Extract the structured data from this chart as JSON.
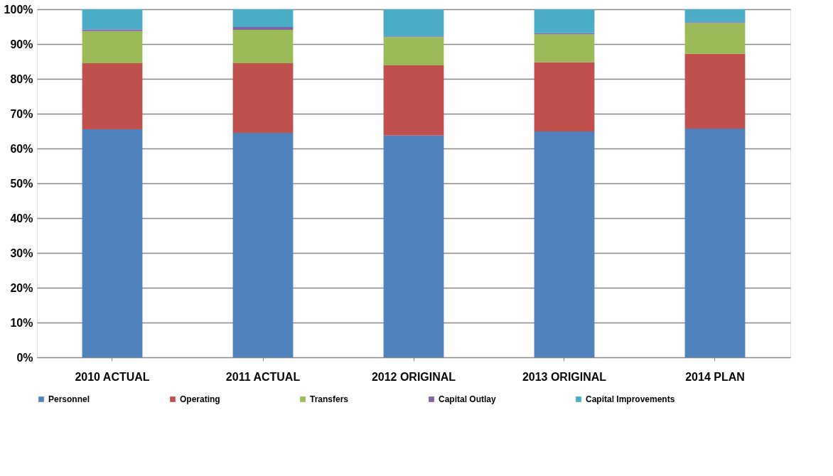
{
  "chart_data": {
    "type": "bar",
    "stacked": true,
    "categories": [
      "2010 ACTUAL",
      "2011 ACTUAL",
      "2012 ORIGINAL",
      "2013 ORIGINAL",
      "2014 PLAN"
    ],
    "series": [
      {
        "name": "Personnel",
        "color": "#4f81bd",
        "values": [
          65.5,
          64.5,
          63.7,
          64.9,
          65.7
        ]
      },
      {
        "name": "Operating",
        "color": "#c0504d",
        "values": [
          19.0,
          20.0,
          20.2,
          19.9,
          21.5
        ]
      },
      {
        "name": "Transfers",
        "color": "#9bbb59",
        "values": [
          9.2,
          9.6,
          8.1,
          8.0,
          8.8
        ]
      },
      {
        "name": "Capital Outlay",
        "color": "#8064a2",
        "values": [
          0.5,
          0.8,
          0.2,
          0.3,
          0.3
        ]
      },
      {
        "name": "Capital Improvements",
        "color": "#4bacc6",
        "values": [
          5.8,
          5.1,
          7.8,
          6.9,
          3.7
        ]
      }
    ],
    "ylim": [
      0,
      100
    ],
    "yticks": [
      {
        "value": 0,
        "label": "0%"
      },
      {
        "value": 10,
        "label": "10%"
      },
      {
        "value": 20,
        "label": "20%"
      },
      {
        "value": 30,
        "label": "30%"
      },
      {
        "value": 40,
        "label": "40%"
      },
      {
        "value": 50,
        "label": "50%"
      },
      {
        "value": 60,
        "label": "60%"
      },
      {
        "value": 70,
        "label": "70%"
      },
      {
        "value": 80,
        "label": "80%"
      },
      {
        "value": 90,
        "label": "90%"
      },
      {
        "value": 100,
        "label": "100%"
      }
    ],
    "grid": "y",
    "legend": "bottom"
  }
}
